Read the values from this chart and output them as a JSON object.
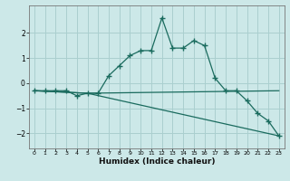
{
  "xlabel": "Humidex (Indice chaleur)",
  "background_color": "#cce8e8",
  "grid_color": "#aacfcf",
  "line_color": "#1a6b5e",
  "series1_x": [
    0,
    1,
    2,
    3,
    4,
    5,
    6,
    7,
    8,
    9,
    10,
    11,
    12,
    13,
    14,
    15,
    16,
    17,
    18,
    19,
    20,
    21,
    22,
    23
  ],
  "series1_y": [
    -0.3,
    -0.3,
    -0.3,
    -0.3,
    -0.5,
    -0.4,
    -0.4,
    0.3,
    0.7,
    1.1,
    1.3,
    1.3,
    2.6,
    1.4,
    1.4,
    1.7,
    1.5,
    0.2,
    -0.3,
    -0.3,
    -0.7,
    -1.2,
    -1.5,
    -2.1
  ],
  "series2_x": [
    0,
    5,
    23
  ],
  "series2_y": [
    -0.3,
    -0.4,
    -2.1
  ],
  "series3_x": [
    0,
    5,
    23
  ],
  "series3_y": [
    -0.3,
    -0.4,
    -0.3
  ],
  "ylim": [
    -2.6,
    3.1
  ],
  "xlim": [
    -0.5,
    23.5
  ],
  "yticks": [
    -2,
    -1,
    0,
    1,
    2
  ],
  "xticks": [
    0,
    1,
    2,
    3,
    4,
    5,
    6,
    7,
    8,
    9,
    10,
    11,
    12,
    13,
    14,
    15,
    16,
    17,
    18,
    19,
    20,
    21,
    22,
    23
  ]
}
